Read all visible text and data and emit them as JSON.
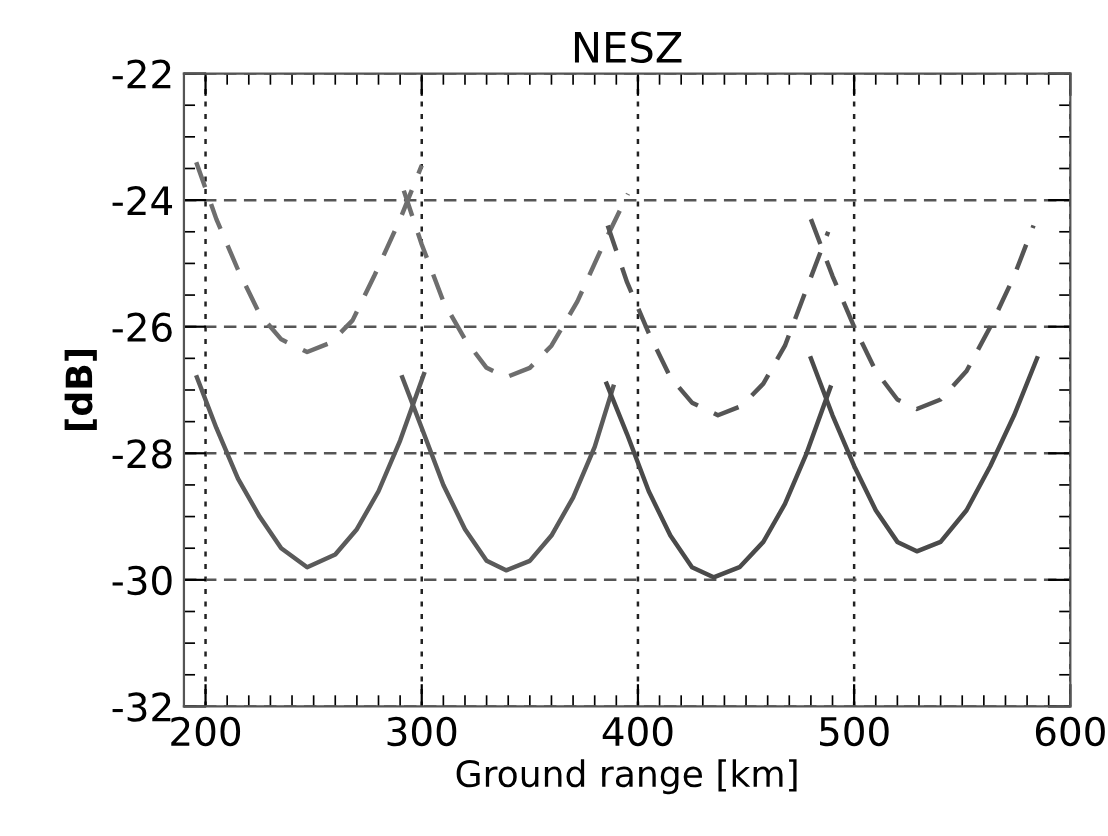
{
  "chart_data": {
    "type": "line",
    "title": "NESZ",
    "xlabel": "Ground range [km]",
    "ylabel": "[dB]",
    "xlim": [
      190,
      600
    ],
    "xticks": [
      200,
      300,
      400,
      500,
      600
    ],
    "ylim": [
      -32,
      -22
    ],
    "yticks": [
      -32,
      -30,
      -28,
      -26,
      -24,
      -22
    ],
    "grid": true,
    "marker": "none",
    "series": [
      {
        "color": "#5a5a5a",
        "line_style": "solid",
        "x": [
          196,
          205,
          215,
          225,
          235,
          247,
          260,
          270,
          280,
          290,
          301
        ],
        "values": [
          -26.8,
          -27.6,
          -28.4,
          -29.0,
          -29.5,
          -29.8,
          -29.6,
          -29.2,
          -28.6,
          -27.8,
          -26.75
        ]
      },
      {
        "color": "#5a5a5a",
        "line_style": "solid",
        "x": [
          291,
          300,
          310,
          320,
          330,
          339,
          350,
          360,
          370,
          380,
          388.6
        ],
        "values": [
          -26.8,
          -27.6,
          -28.5,
          -29.2,
          -29.7,
          -29.85,
          -29.7,
          -29.3,
          -28.7,
          -27.9,
          -26.95
        ]
      },
      {
        "color": "#4a4a4a",
        "line_style": "solid",
        "x": [
          385.5,
          395,
          405,
          415,
          425,
          435,
          447,
          458,
          468,
          478,
          489
        ],
        "values": [
          -26.9,
          -27.7,
          -28.6,
          -29.3,
          -29.8,
          -29.96,
          -29.8,
          -29.4,
          -28.8,
          -28.0,
          -26.96
        ]
      },
      {
        "color": "#4a4a4a",
        "line_style": "solid",
        "x": [
          480,
          490,
          500,
          510,
          520,
          529,
          540,
          552,
          563,
          574,
          584.6
        ],
        "values": [
          -26.5,
          -27.4,
          -28.2,
          -28.9,
          -29.4,
          -29.55,
          -29.4,
          -28.9,
          -28.2,
          -27.4,
          -26.5
        ]
      },
      {
        "color": "#6e6e6e",
        "line_style": "dashed",
        "x": [
          195.7,
          205,
          215,
          225,
          235,
          247,
          258,
          268,
          278,
          290,
          300
        ],
        "values": [
          -23.4,
          -24.3,
          -25.1,
          -25.8,
          -26.2,
          -26.4,
          -26.25,
          -25.9,
          -25.2,
          -24.3,
          -23.45
        ]
      },
      {
        "color": "#6e6e6e",
        "line_style": "dashed",
        "x": [
          291.7,
          300,
          310,
          320,
          330,
          339,
          350,
          360,
          372,
          384,
          395.4
        ],
        "values": [
          -23.85,
          -24.7,
          -25.6,
          -26.2,
          -26.65,
          -26.8,
          -26.65,
          -26.3,
          -25.6,
          -24.7,
          -23.9
        ]
      },
      {
        "color": "#555555",
        "line_style": "dashed",
        "x": [
          386,
          395,
          405,
          415,
          425,
          437,
          448,
          458,
          468,
          478,
          488
        ],
        "values": [
          -24.4,
          -25.3,
          -26.1,
          -26.8,
          -27.2,
          -27.4,
          -27.25,
          -26.9,
          -26.3,
          -25.4,
          -24.5
        ]
      },
      {
        "color": "#555555",
        "line_style": "dashed",
        "x": [
          480,
          490,
          500,
          510,
          520,
          529,
          540,
          552,
          563,
          574,
          583
        ],
        "values": [
          -24.3,
          -25.2,
          -26.0,
          -26.7,
          -27.15,
          -27.3,
          -27.15,
          -26.7,
          -26.0,
          -25.2,
          -24.4
        ]
      }
    ]
  }
}
